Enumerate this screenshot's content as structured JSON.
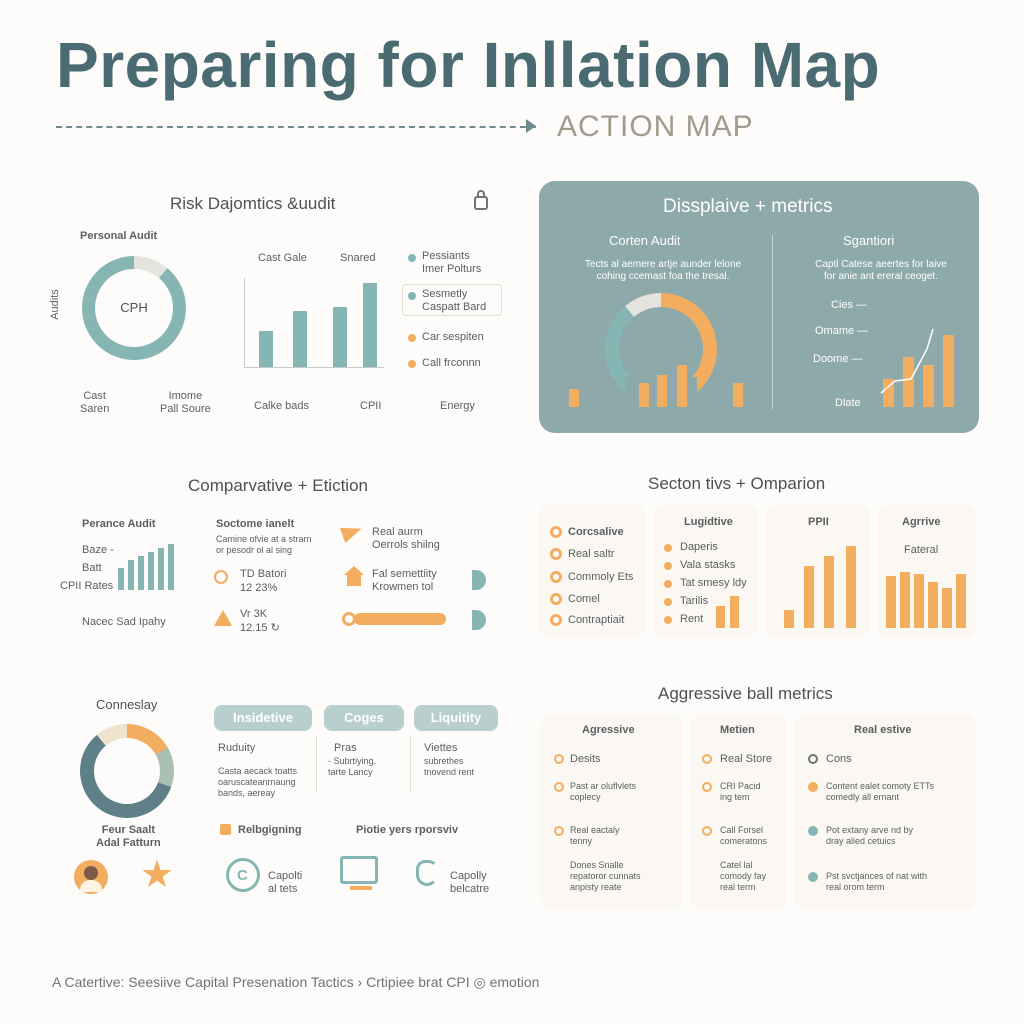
{
  "header": {
    "title": "Preparing for Inllation Map",
    "subtitle": "ACTION MAP"
  },
  "risk": {
    "title": "Risk Dajomtics &uudit",
    "personal_audit": "Personal Audit",
    "side_label": "Audits",
    "donut_center": "CPH",
    "donut_labels": [
      "Cast\nSaren",
      "Imome\nPall Soure"
    ],
    "bar_top_labels": [
      "Cast Gale",
      "Snared"
    ],
    "bar_bottom_labels": [
      "Calke bads",
      "CPII",
      "Energy"
    ],
    "legend": [
      "Pessiants\nImer Polturs",
      "Sesmetly\nCaspatt Bard",
      "Car sespiten",
      "Call frconnn"
    ]
  },
  "disp": {
    "title": "Dissplaive + metrics",
    "left_title": "Corten Audit",
    "left_desc": "Tects al aemere artje aunder lelone\ncohing ccemast foa the tresal.",
    "right_title": "Sgantiori",
    "right_desc": "Captl Catese aeertes for laive\nfor anie ant ereral ceoget.",
    "right_labels": [
      "Cies —",
      "Omame —",
      "Doome —",
      "Dlate"
    ]
  },
  "comparative": {
    "title": "Comparvative + Etiction",
    "perance_audit": "Perance Audit",
    "labels": [
      "Baze -",
      "Batt",
      "CPII Rates",
      "Nacec Sad Ipahy"
    ],
    "sect_title": "Soctome ianelt",
    "sect_desc": "Camine ofvie at a strarn\nor pesodr ol al sing",
    "td_lines": [
      "TD Batori",
      "12 23%"
    ],
    "vk_lines": [
      "Vr 3K",
      "12.15 ↻"
    ],
    "right_items": [
      "Real aurm\nOerrols shilng",
      "Fal semettiity\nKrowmen tol"
    ]
  },
  "section": {
    "title": "Secton tivs +  Omparion",
    "list": [
      "Corcsalive",
      "Real saltr",
      "Commoly Ets",
      "Comel",
      "Contraptiait"
    ],
    "liq_title": "Lugidtive",
    "liq_list": [
      "Daperis",
      "Vala stasks",
      "Tat smesy ldy",
      "Tarilis",
      "Rent"
    ],
    "ppi_title": "PPII",
    "agr_title": "Agrrive",
    "agr_sub": "Fateral"
  },
  "lower_left": {
    "title": "Conneslay",
    "donut_caption": "Feur Saalt\nAdal Fatturn",
    "chips": [
      "Insidetive",
      "Coges",
      "Liquitity"
    ],
    "col1": [
      "Ruduity",
      "Casta aecack toatts\noaruscateanrnaung\nbands, aereay"
    ],
    "col2": [
      "Pras",
      "- Subrtiying,\ntarte Lancy"
    ],
    "col3": [
      "Viettes",
      "subrethes\ntnovend rent"
    ],
    "rebalancing": "Relbgigning",
    "plotic": "Piotie yers rporsviv",
    "bottom_items": [
      "Capolti\nal tets",
      "Capolly\nbelcatre"
    ]
  },
  "aggressive": {
    "title": "Aggressive ball metrics",
    "col_heads": [
      "Agressive",
      "Metien",
      "Real estive"
    ],
    "col1": [
      "Desits",
      "Past ar oluflvlets\ncoplecy",
      "Real eactaly\ntenny",
      "Dones Snalle\nrepatoror cunnats\nanpisty reate"
    ],
    "col2": [
      "Real Store",
      "CRI Pacid\ning tem",
      "Call Forsel\ncomeratons",
      "Catel lal\ncomody fay\nreal term"
    ],
    "col3": [
      "Cons",
      "Content ealet comoty ETTs\ncomedly all ernant",
      "Pot extany arve nd by\ndray alied cetuics",
      "Pst svctjances of nat with\nreal orom term"
    ]
  },
  "footer": {
    "text": "A Catertive: Seesiive Capital Presenation Tactics  ›  Crtipiee brat CPI  ◎  emotion"
  }
}
